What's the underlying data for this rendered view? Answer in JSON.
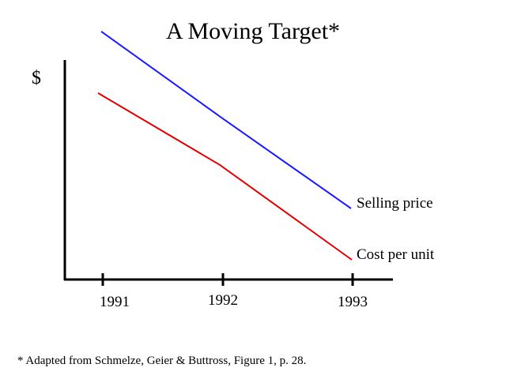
{
  "chart_data": {
    "type": "line",
    "title": "A Moving Target*",
    "ylabel": "$",
    "xlabel": "",
    "x": [
      "1991",
      "1992",
      "1993"
    ],
    "series": [
      {
        "name": "Selling price",
        "color": "#1a1aff",
        "values": [
          9.7,
          6.3,
          2.8
        ]
      },
      {
        "name": "Cost per unit",
        "color": "#e00000",
        "values": [
          7.3,
          4.5,
          0.8
        ]
      }
    ],
    "ylim": [
      0,
      10
    ],
    "grid": false,
    "legend": "line-end labels",
    "footnote": "* Adapted from Schmelze, Geier & Buttross, Figure 1, p. 28."
  }
}
